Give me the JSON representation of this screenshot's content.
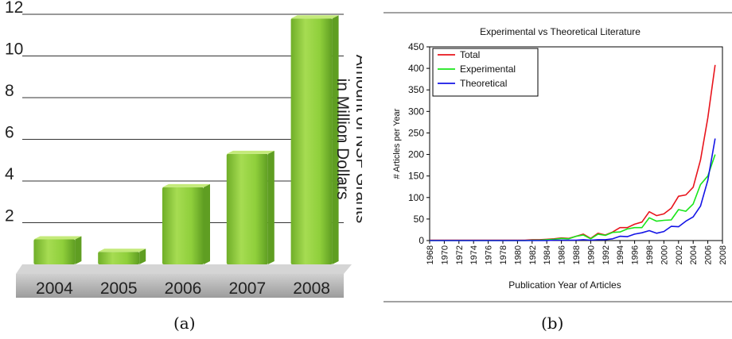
{
  "captions": {
    "a": "(a)",
    "b": "(b)"
  },
  "chart_data": [
    {
      "type": "bar",
      "categories": [
        "2004",
        "2005",
        "2006",
        "2007",
        "2008"
      ],
      "values": [
        1.2,
        0.6,
        3.7,
        5.3,
        11.8
      ],
      "ylim": [
        0,
        12
      ],
      "yticks": [
        "2",
        "4",
        "6",
        "8",
        "10",
        "12"
      ],
      "ylabel_lines": [
        "Amount of NSF Grants",
        "in Million Dollars"
      ],
      "grid": true,
      "colors": {
        "bar": "#8fcf3b",
        "bar_light": "#c4ea7a",
        "bar_dark": "#5f9e22",
        "base": "#b6b6b6"
      }
    },
    {
      "type": "line",
      "title": "Experimental vs Theoretical Literature",
      "xlabel": "Publication Year of Articles",
      "ylabel": "# Articles per Year",
      "xlim": [
        1968,
        2008
      ],
      "ylim": [
        0,
        450
      ],
      "xticks": [
        "1968",
        "1970",
        "1972",
        "1974",
        "1976",
        "1978",
        "1980",
        "1982",
        "1984",
        "1986",
        "1988",
        "1990",
        "1992",
        "1994",
        "1996",
        "1998",
        "2000",
        "2002",
        "2004",
        "2006",
        "2008"
      ],
      "yticks": [
        "0",
        "50",
        "100",
        "150",
        "200",
        "250",
        "300",
        "350",
        "400",
        "450"
      ],
      "legend_position": "top-left",
      "x": [
        1968,
        1969,
        1970,
        1971,
        1972,
        1973,
        1974,
        1975,
        1976,
        1977,
        1978,
        1979,
        1980,
        1981,
        1982,
        1983,
        1984,
        1985,
        1986,
        1987,
        1988,
        1989,
        1990,
        1991,
        1992,
        1993,
        1994,
        1995,
        1996,
        1997,
        1998,
        1999,
        2000,
        2001,
        2002,
        2003,
        2004,
        2005,
        2006,
        2007
      ],
      "series": [
        {
          "name": "Total",
          "color": "#e8141c",
          "values": [
            1,
            1,
            1,
            1,
            1,
            1,
            1,
            1,
            1,
            1,
            1,
            1,
            1,
            1,
            2,
            2,
            3,
            4,
            6,
            5,
            10,
            15,
            5,
            17,
            13,
            20,
            30,
            30,
            38,
            43,
            67,
            58,
            62,
            75,
            103,
            106,
            124,
            187,
            285,
            408
          ]
        },
        {
          "name": "Experimental",
          "color": "#19e619",
          "values": [
            0,
            0,
            0,
            0,
            0,
            0,
            0,
            0,
            0,
            0,
            0,
            0,
            0,
            0,
            1,
            1,
            2,
            3,
            5,
            4,
            10,
            13,
            4,
            15,
            12,
            19,
            20,
            27,
            30,
            30,
            53,
            45,
            47,
            48,
            72,
            68,
            85,
            130,
            150,
            200
          ]
        },
        {
          "name": "Theoretical",
          "color": "#1414e6",
          "values": [
            0,
            0,
            0,
            0,
            0,
            0,
            0,
            0,
            0,
            0,
            0,
            0,
            0,
            0,
            0,
            0,
            0,
            1,
            1,
            1,
            1,
            2,
            1,
            2,
            2,
            4,
            10,
            9,
            15,
            18,
            23,
            17,
            21,
            33,
            32,
            45,
            55,
            80,
            140,
            237
          ]
        }
      ]
    }
  ]
}
